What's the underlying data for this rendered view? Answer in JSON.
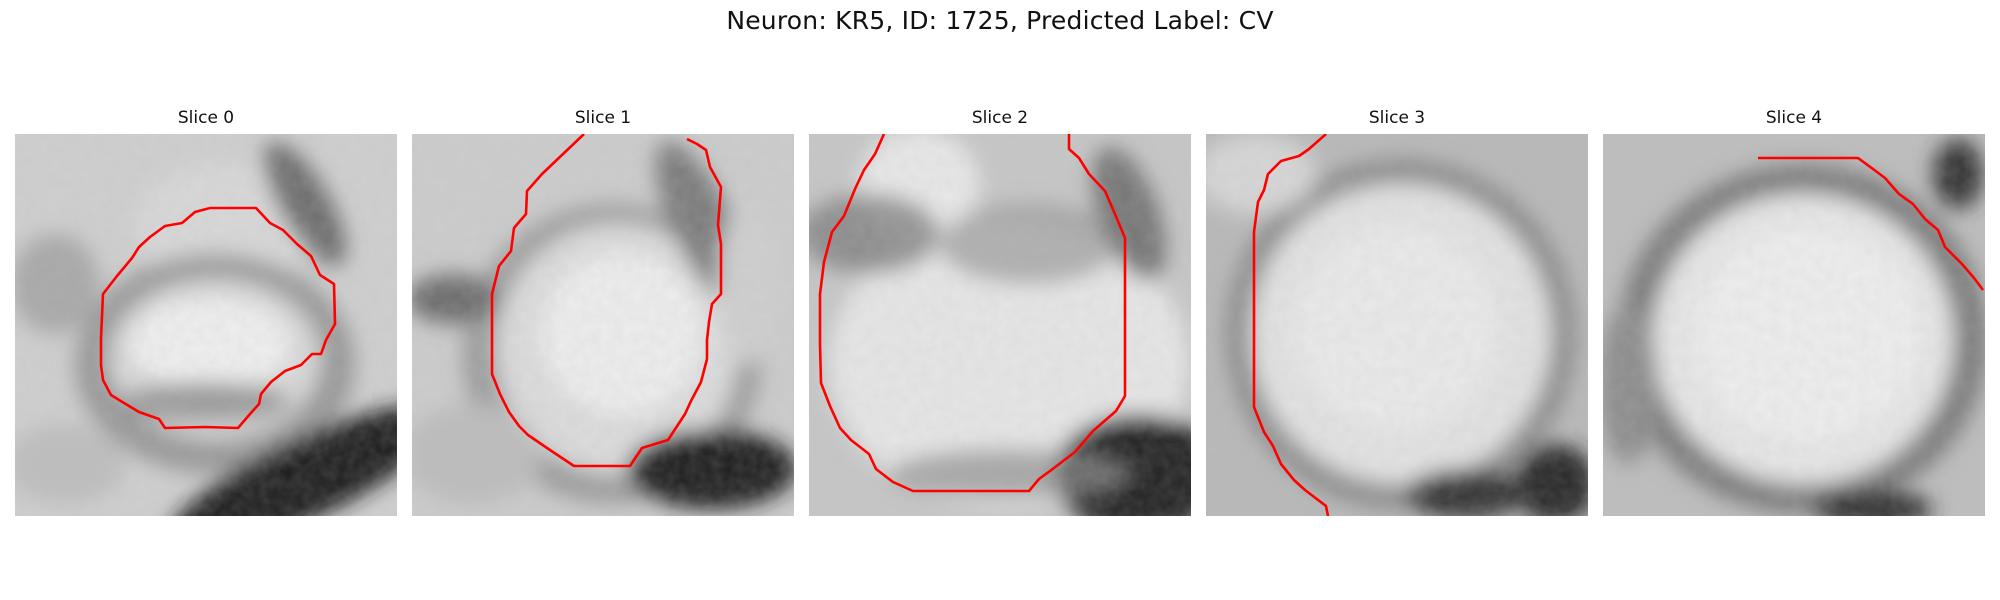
{
  "figure": {
    "title": "Neuron: KR5, ID: 1725, Predicted Label: CV",
    "contour_color": "#ff0000",
    "colormap": "grayscale"
  },
  "panels": [
    {
      "title": "Slice 0",
      "content": "grayscale microscopy patch with red cell-boundary contour"
    },
    {
      "title": "Slice 1",
      "content": "grayscale microscopy patch with red cell-boundary contour"
    },
    {
      "title": "Slice 2",
      "content": "grayscale microscopy patch with red cell-boundary contour"
    },
    {
      "title": "Slice 3",
      "content": "grayscale microscopy patch with red cell-boundary contour"
    },
    {
      "title": "Slice 4",
      "content": "grayscale microscopy patch with red cell-boundary contour"
    }
  ]
}
